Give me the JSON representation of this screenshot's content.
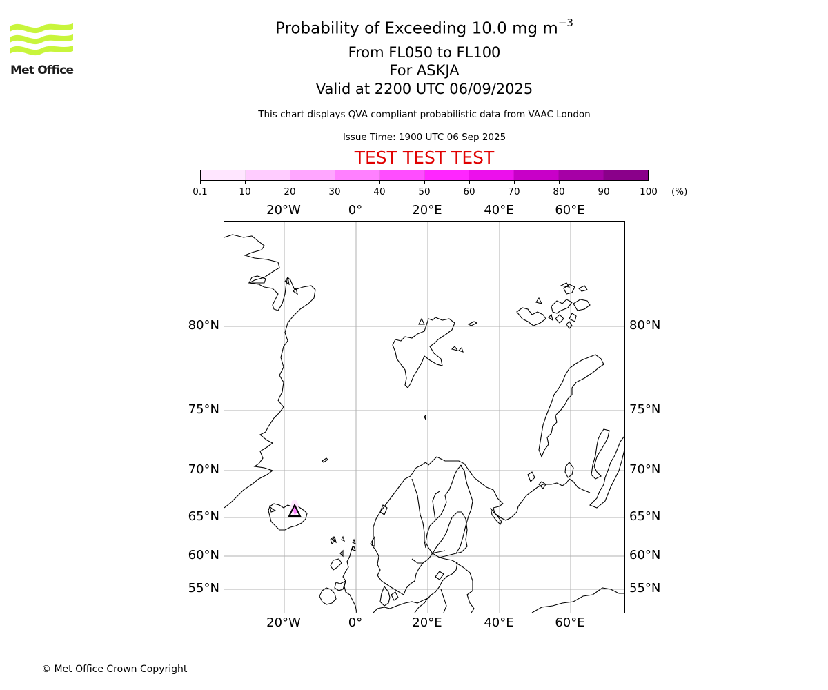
{
  "logo": {
    "text": "Met Office",
    "wave_color": "#c8f53c"
  },
  "title": {
    "main": "Probability of Exceeding 10.0 mg m",
    "superscript": "−3"
  },
  "subtitle": {
    "levels": "From FL050 to FL100",
    "volcano": "For ASKJA",
    "valid": "Valid at 2200 UTC 06/09/2025"
  },
  "note": "This chart displays QVA compliant probabilistic data from VAAC London",
  "issue_time": "Issue Time: 1900 UTC 06 Sep 2025",
  "test_banner": "TEST TEST TEST",
  "colorbar": {
    "labels": [
      "0.1",
      "10",
      "20",
      "30",
      "40",
      "50",
      "60",
      "70",
      "80",
      "90",
      "100"
    ],
    "unit": "(%)",
    "colors": [
      "#ffe6ff",
      "#ffccff",
      "#ffa6ff",
      "#ff80ff",
      "#ff4dff",
      "#ff26ff",
      "#ec10ec",
      "#c800c8",
      "#a600a6",
      "#8a008a",
      "#660066"
    ]
  },
  "map": {
    "lon_labels": [
      "20°W",
      "0°",
      "20°E",
      "40°E",
      "60°E"
    ],
    "lat_labels": [
      "80°N",
      "75°N",
      "70°N",
      "65°N",
      "60°N",
      "55°N"
    ],
    "ash_probability_percent": [
      0.1,
      30
    ],
    "volcano_marker": "triangle"
  },
  "copyright": "© Met Office Crown Copyright"
}
